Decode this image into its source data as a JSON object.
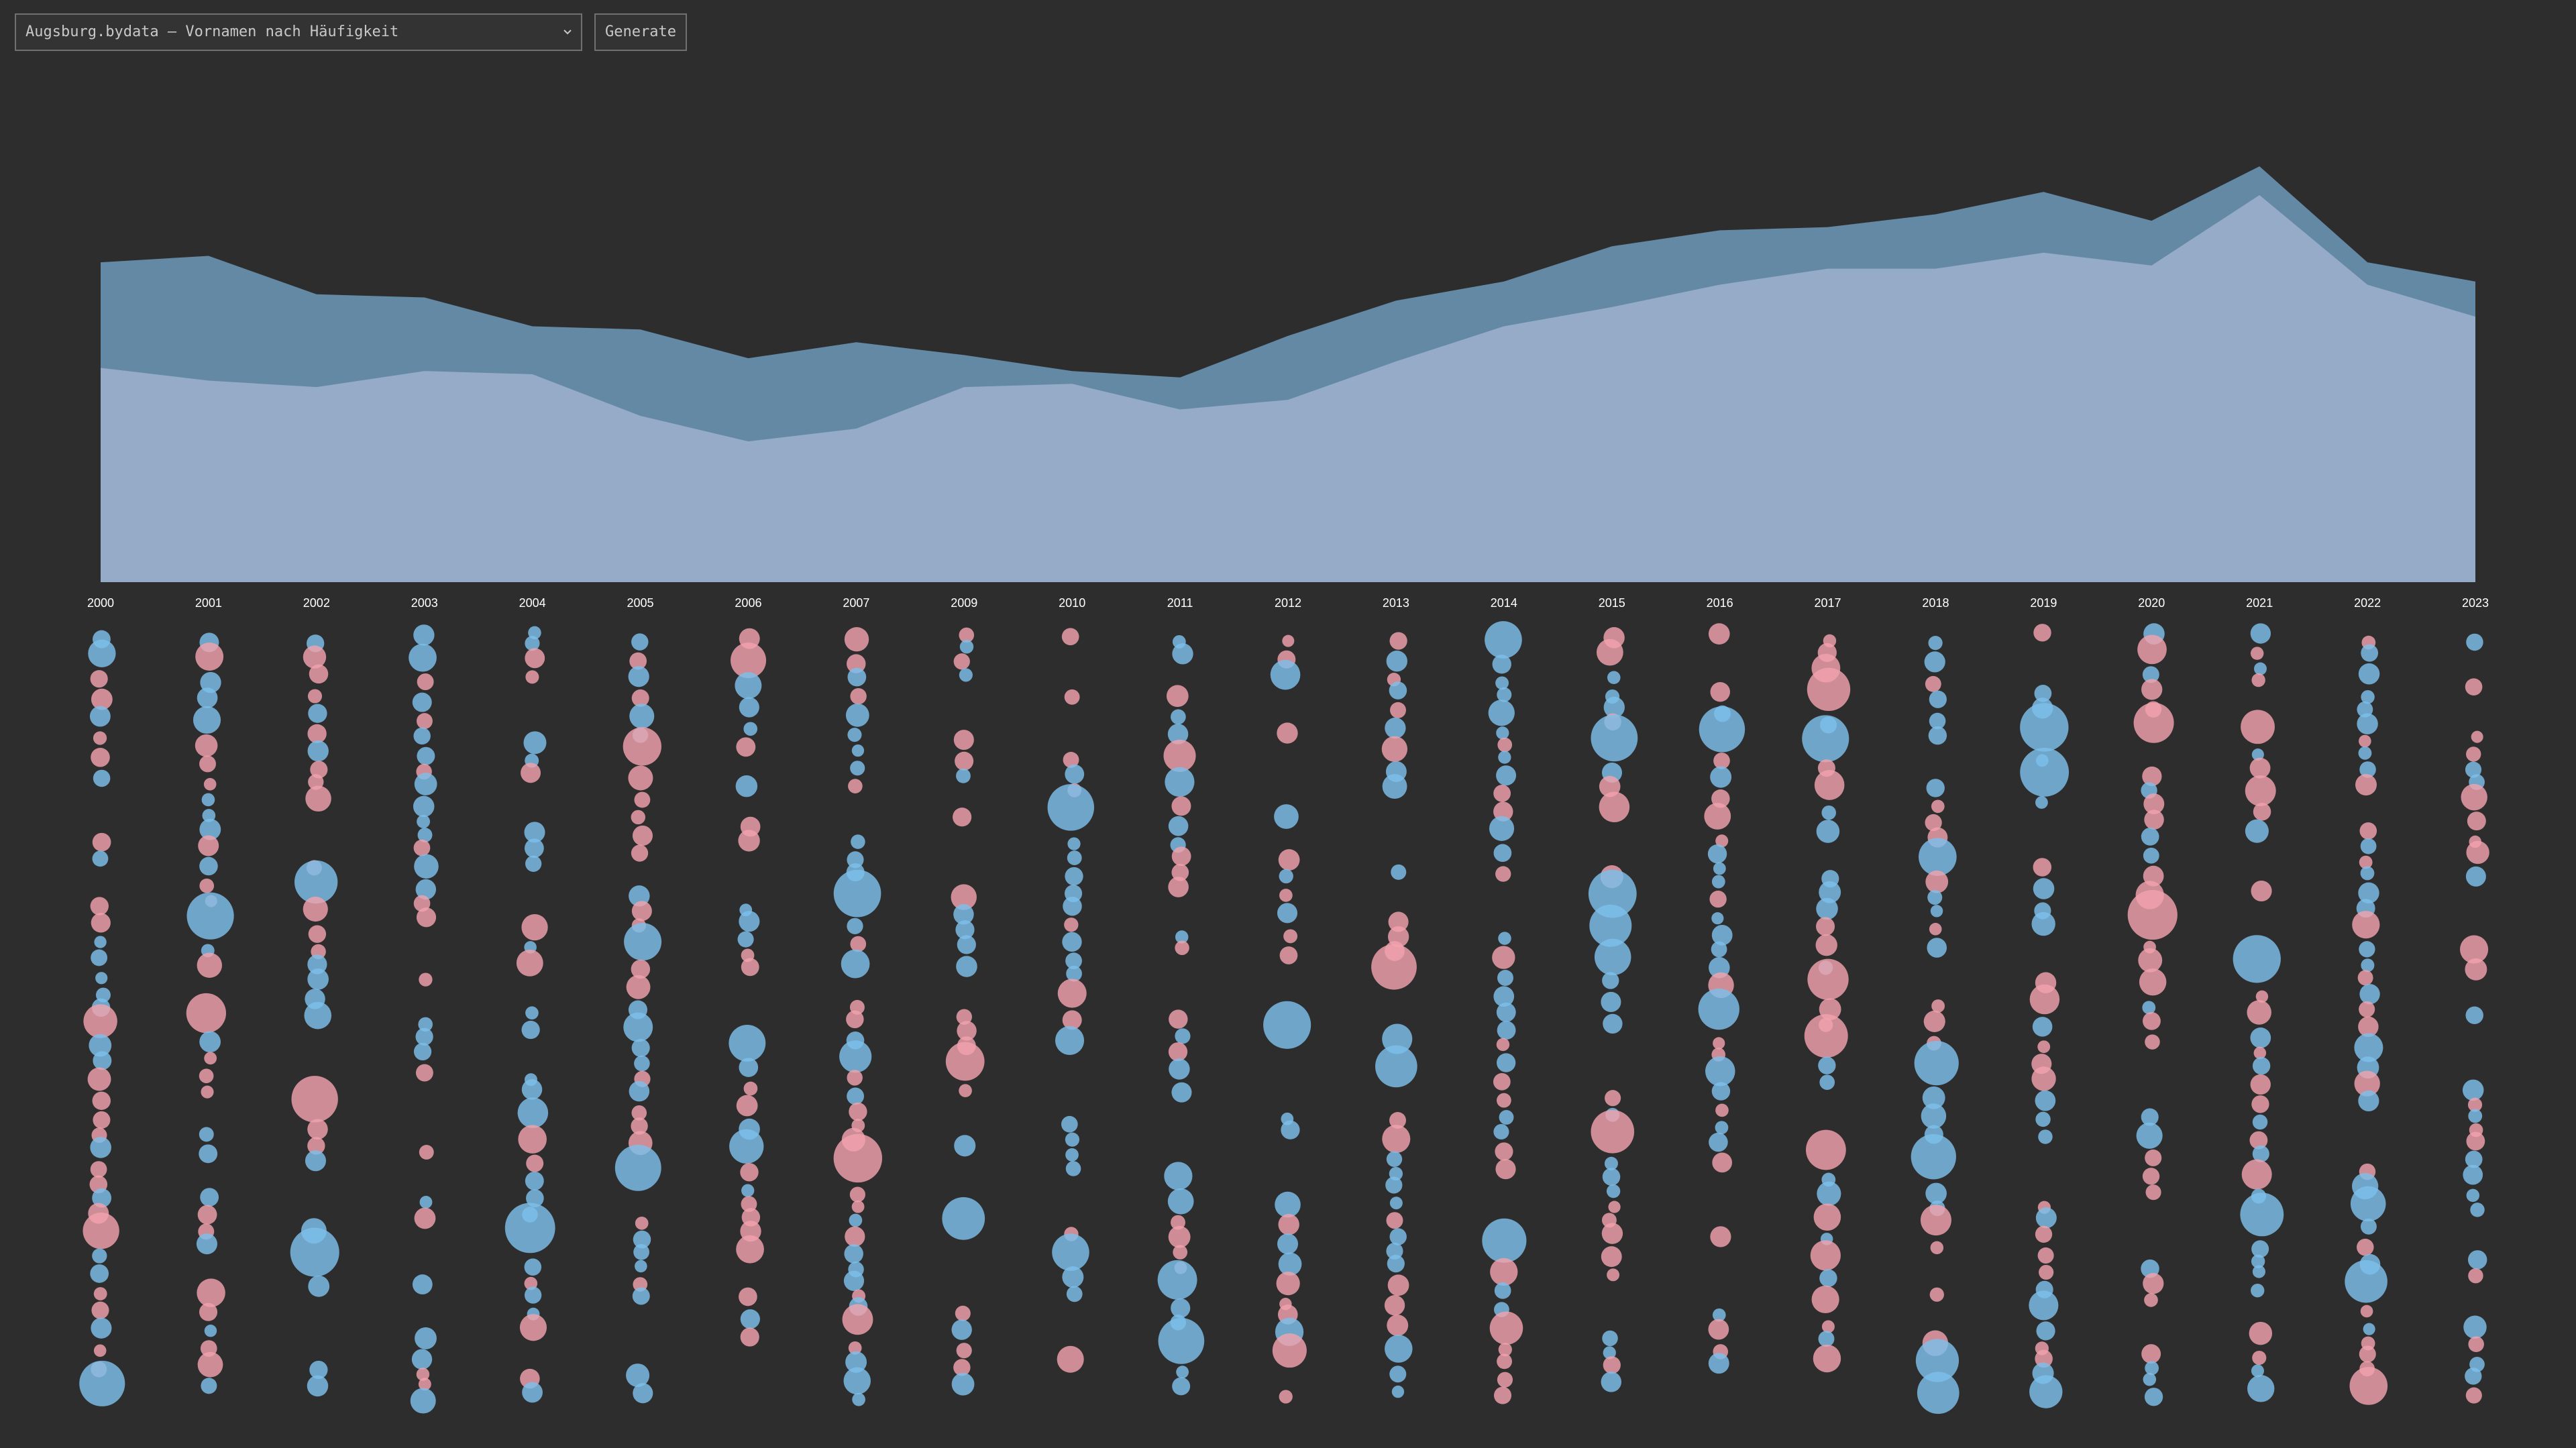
{
  "toolbar": {
    "dataset_select_value": "Augsburg.bydata – Vornamen nach Häufigkeit",
    "generate_label": "Generate",
    "chevron_icon": "chevron-down-icon"
  },
  "colors": {
    "background": "#2d2d2d",
    "area_total": "#6389a5",
    "area_base": "#95abc8",
    "male": "#7cbfec",
    "female": "#f2a2ad",
    "year_label": "#ffffff"
  },
  "chart_data": [
    {
      "type": "area",
      "x": [
        "2000",
        "2001",
        "2002",
        "2003",
        "2004",
        "2005",
        "2006",
        "2007",
        "2009",
        "2010",
        "2011",
        "2012",
        "2013",
        "2014",
        "2015",
        "2016",
        "2017",
        "2018",
        "2019",
        "2020",
        "2021",
        "2022",
        "2023"
      ],
      "series": [
        {
          "values": [
            1.0,
            1.02,
            0.9,
            0.89,
            0.8,
            0.79,
            0.7,
            0.75,
            0.71,
            0.66,
            0.64,
            0.77,
            0.88,
            0.94,
            1.05,
            1.1,
            1.11,
            1.15,
            1.22,
            1.13,
            1.3,
            1.0,
            0.94
          ]
        },
        {
          "values": [
            0.67,
            0.63,
            0.61,
            0.66,
            0.65,
            0.52,
            0.44,
            0.48,
            0.61,
            0.62,
            0.54,
            0.57,
            0.69,
            0.8,
            0.86,
            0.93,
            0.98,
            0.98,
            1.03,
            0.99,
            1.21,
            0.93,
            0.83
          ]
        }
      ],
      "ylim": [
        0,
        1.3
      ]
    },
    {
      "type": "scatter",
      "x": [
        "2000",
        "2001",
        "2002",
        "2003",
        "2004",
        "2005",
        "2006",
        "2007",
        "2009",
        "2010",
        "2011",
        "2012",
        "2013",
        "2014",
        "2015",
        "2016",
        "2017",
        "2018",
        "2019",
        "2020",
        "2021",
        "2022",
        "2023"
      ],
      "series": [
        {
          "type": "male"
        },
        {
          "type": "female"
        }
      ]
    }
  ]
}
